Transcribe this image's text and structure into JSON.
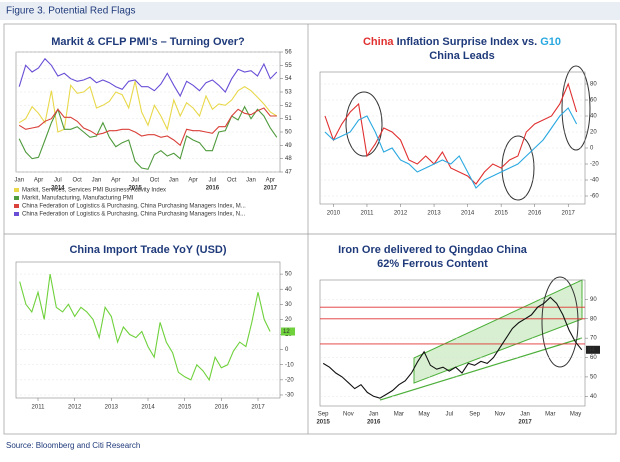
{
  "figure_title": "Figure 3. Potential Red Flags",
  "source": "Source: Bloomberg and Citi Research",
  "chart_data": [
    {
      "type": "line",
      "title": "Markit & CFLP PMI's – Turning Over?",
      "categories": [
        "Jan",
        null,
        null,
        "Apr",
        null,
        null,
        "Jul",
        null,
        null,
        "Oct",
        null,
        null,
        "Jan",
        null,
        null,
        "Apr",
        null,
        null,
        "Jul",
        null,
        null,
        "Oct",
        null,
        null,
        "Jan",
        null,
        null,
        "Apr",
        null,
        null,
        "Jul",
        null,
        null,
        "Oct",
        null,
        null,
        "Jan",
        null,
        null,
        "Apr",
        null
      ],
      "year_labels": [
        "2014",
        "2015",
        "2016",
        "2017"
      ],
      "ylim": [
        47,
        56
      ],
      "yticks": [
        47,
        48,
        49,
        50,
        51,
        52,
        53,
        54,
        55,
        56
      ],
      "series": [
        {
          "name": "Markit, Services, Services PMI Business Activity Index",
          "color": "#e8d84a",
          "values": [
            50.7,
            51,
            51.9,
            51.4,
            50.7,
            53.1,
            50,
            50.2,
            53.5,
            52.9,
            53,
            53.4,
            51.8,
            52,
            52.3,
            53,
            52.8,
            51.8,
            53.8,
            51.5,
            50.5,
            52,
            51.2,
            50.2,
            52.4,
            51.2,
            52.2,
            51.8,
            51.2,
            52.7,
            51.7,
            52.1,
            52,
            52.4,
            53.1,
            53.4,
            53.1,
            52.6,
            52.1,
            51.5,
            51.2
          ]
        },
        {
          "name": "Markit, Manufacturing, Manufacturing PMI",
          "color": "#4f9a3c",
          "values": [
            49.5,
            48.5,
            48,
            48.1,
            49.4,
            50.7,
            51.7,
            50.2,
            50.2,
            50.4,
            50,
            49.6,
            49.7,
            50.7,
            49.6,
            48.9,
            49.2,
            49.4,
            47.8,
            47.3,
            47.2,
            48.3,
            48.6,
            48.2,
            48.4,
            48,
            49.7,
            49.4,
            49.2,
            48.6,
            48.6,
            50,
            50.1,
            51.2,
            50.9,
            51.9,
            51,
            51.7,
            51.2,
            50.3,
            49.6
          ]
        },
        {
          "name": "China Federation of Logistics & Purchasing, China Purchasing Managers Index, M...",
          "color": "#d9413a",
          "values": [
            50.5,
            50.2,
            50.3,
            50.4,
            50.8,
            51,
            51.7,
            51.1,
            51.1,
            50.8,
            50.3,
            50.1,
            49.8,
            49.9,
            50.1,
            50.1,
            50.2,
            50.2,
            50,
            49.7,
            49.8,
            49.8,
            49.6,
            49.7,
            49.4,
            49,
            50.2,
            50.1,
            50.1,
            50,
            49.9,
            50.4,
            50.4,
            51.2,
            51.7,
            51.4,
            51.3,
            51.6,
            51.8,
            51.2,
            51.2
          ]
        },
        {
          "name": "China Federation of Logistics & Purchasing, China Purchasing Managers Index, N...",
          "color": "#6a4fd6",
          "values": [
            53.4,
            55,
            54.5,
            54.8,
            55.5,
            55,
            54.2,
            54.4,
            54,
            53.8,
            53.9,
            54.1,
            53.7,
            53.9,
            53.7,
            53.4,
            53.2,
            53.8,
            53.9,
            53.4,
            53.4,
            53.1,
            53.6,
            54.4,
            53.5,
            52.7,
            53.8,
            53.5,
            53.1,
            53.7,
            53.9,
            53.5,
            53,
            54,
            54.7,
            54.5,
            54.6,
            54.2,
            55.1,
            54,
            54.5
          ]
        }
      ]
    },
    {
      "type": "line",
      "title_parts": [
        "China",
        " Inflation Surprise Index vs. ",
        "G10"
      ],
      "subtitle": "China Leads",
      "x": [
        2009.75,
        2010,
        2010.25,
        2010.5,
        2010.75,
        2011,
        2011.25,
        2011.5,
        2011.75,
        2012,
        2012.25,
        2012.5,
        2012.75,
        2013,
        2013.25,
        2013.5,
        2013.75,
        2014,
        2014.25,
        2014.5,
        2014.75,
        2015,
        2015.25,
        2015.5,
        2015.75,
        2016,
        2016.25,
        2016.5,
        2016.75,
        2017,
        2017.25
      ],
      "xlim": [
        2009.6,
        2017.5
      ],
      "xticks": [
        2010,
        2011,
        2012,
        2013,
        2014,
        2015,
        2016,
        2017
      ],
      "ylim": [
        -70,
        95
      ],
      "yticks": [
        -60,
        -40,
        -20,
        0,
        20,
        40,
        60,
        80
      ],
      "series": [
        {
          "name": "China",
          "color": "#e03030",
          "values": [
            40,
            10,
            30,
            45,
            55,
            -10,
            5,
            25,
            20,
            10,
            -15,
            -20,
            -10,
            -20,
            -5,
            -25,
            -30,
            -35,
            -45,
            -30,
            -20,
            -25,
            -15,
            -10,
            20,
            30,
            35,
            40,
            55,
            80,
            45
          ]
        },
        {
          "name": "G10",
          "color": "#2aa8e0",
          "values": [
            20,
            10,
            15,
            20,
            35,
            40,
            20,
            -5,
            0,
            -15,
            -20,
            -30,
            -25,
            -20,
            -15,
            -20,
            -10,
            -30,
            -50,
            -40,
            -35,
            -30,
            -25,
            -20,
            -10,
            0,
            10,
            25,
            40,
            50,
            30
          ]
        }
      ]
    },
    {
      "type": "line",
      "title": "China Import Trade YoY (USD)",
      "x": [
        2010.5,
        2010.67,
        2010.83,
        2011,
        2011.17,
        2011.33,
        2011.5,
        2011.67,
        2011.83,
        2012,
        2012.17,
        2012.33,
        2012.5,
        2012.67,
        2012.83,
        2013,
        2013.17,
        2013.33,
        2013.5,
        2013.67,
        2013.83,
        2014,
        2014.17,
        2014.33,
        2014.5,
        2014.67,
        2014.83,
        2015,
        2015.17,
        2015.33,
        2015.5,
        2015.67,
        2015.83,
        2016,
        2016.17,
        2016.33,
        2016.5,
        2016.67,
        2016.83,
        2017,
        2017.17,
        2017.33
      ],
      "xlim": [
        2010.4,
        2017.6
      ],
      "xticks": [
        2011,
        2012,
        2013,
        2014,
        2015,
        2016,
        2017
      ],
      "ylim": [
        -32,
        58
      ],
      "yticks": [
        -30,
        -20,
        -10,
        0,
        10,
        20,
        30,
        40,
        50
      ],
      "series": [
        {
          "name": "China Import Trade YoY",
          "color": "#6fd13c",
          "values": [
            45,
            30,
            25,
            38,
            20,
            50,
            28,
            25,
            30,
            22,
            28,
            25,
            20,
            8,
            28,
            22,
            5,
            15,
            10,
            8,
            12,
            2,
            -5,
            18,
            5,
            -2,
            -15,
            -18,
            -20,
            -10,
            -14,
            -20,
            -5,
            -12,
            -10,
            -1,
            5,
            2,
            18,
            38,
            20,
            12
          ]
        }
      ]
    },
    {
      "type": "line",
      "title": "Iron Ore delivered to Qingdao China",
      "subtitle": "62% Ferrous Content",
      "categories": [
        "Sep",
        null,
        null,
        null,
        "Nov",
        null,
        null,
        null,
        "Jan",
        null,
        null,
        null,
        "Mar",
        null,
        null,
        null,
        "May",
        null,
        null,
        null,
        "Jul",
        null,
        null,
        null,
        "Sep",
        null,
        null,
        null,
        "Nov",
        null,
        null,
        null,
        "Jan",
        null,
        null,
        null,
        "Mar",
        null,
        null,
        null,
        "May",
        null
      ],
      "year_labels": [
        "2015",
        "2016",
        "2017"
      ],
      "ylim": [
        35,
        100
      ],
      "yticks": [
        40,
        50,
        60,
        70,
        80,
        90
      ],
      "reference_lines": [
        86,
        80,
        67
      ],
      "series": [
        {
          "name": "Iron Ore 62% Fe",
          "color": "#111111",
          "values": [
            57,
            55,
            52,
            50,
            47,
            44,
            46,
            42,
            40,
            39,
            41,
            43,
            46,
            48,
            52,
            58,
            63,
            56,
            54,
            55,
            53,
            55,
            52,
            57,
            56,
            58,
            57,
            60,
            65,
            70,
            75,
            78,
            80,
            82,
            86,
            88,
            91,
            88,
            82,
            74,
            68,
            64
          ]
        }
      ]
    }
  ]
}
